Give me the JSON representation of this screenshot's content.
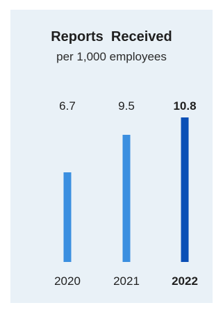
{
  "chart_data": {
    "type": "bar",
    "title": "Reports  Received",
    "subtitle": "per 1,000 employees",
    "categories": [
      "2020",
      "2021",
      "2022"
    ],
    "values": [
      6.7,
      9.5,
      10.8
    ],
    "value_labels": [
      "6.7",
      "9.5",
      "10.8"
    ],
    "highlight_category": "2022",
    "ylim": [
      0,
      10.8
    ],
    "grid": false,
    "legend": "none"
  },
  "colors": {
    "background": "#e9f1f7",
    "bar": "#3b8fe0",
    "bar_highlight": "#0a4fb6",
    "text": "#1f1f1f"
  }
}
